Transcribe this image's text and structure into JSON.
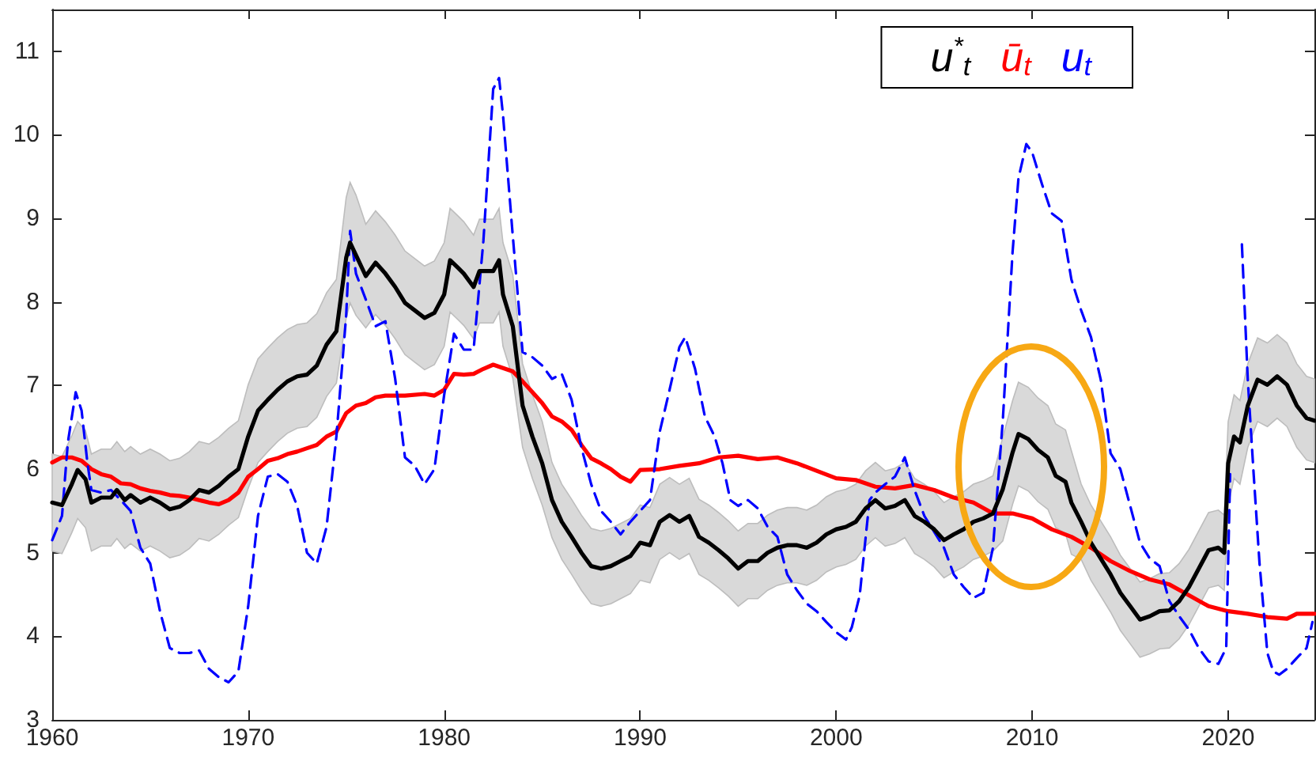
{
  "chart_data": {
    "type": "line",
    "marker": "none",
    "legend": "top right",
    "grid": false,
    "xlim": [
      1960,
      2024.4
    ],
    "xticks": [
      1960,
      1970,
      1980,
      1990,
      2000,
      2010,
      2020
    ],
    "ylim": [
      3,
      11.5
    ],
    "yticks": [
      3,
      4,
      5,
      6,
      7,
      8,
      9,
      10,
      11
    ],
    "series": [
      {
        "name": "ū$_{t}$",
        "color": "#ff0000",
        "line_style": "solid",
        "x": [
          1960,
          1960.5,
          1961,
          1961.5,
          1962,
          1962.5,
          1963,
          1963.5,
          1964,
          1964.5,
          1965,
          1965.5,
          1966,
          1966.5,
          1967,
          1967.5,
          1968,
          1968.5,
          1969,
          1969.5,
          1970,
          1970.5,
          1971,
          1971.5,
          1972,
          1972.5,
          1973,
          1973.5,
          1974,
          1974.5,
          1975,
          1975.5,
          1976,
          1976.5,
          1977,
          1978,
          1979,
          1979.5,
          1980,
          1980.5,
          1981,
          1981.5,
          1982,
          1982.5,
          1983,
          1983.5,
          1984,
          1984.5,
          1985,
          1985.5,
          1986,
          1986.5,
          1987,
          1987.5,
          1988,
          1988.5,
          1989,
          1989.5,
          1990,
          1991,
          1992,
          1993,
          1994,
          1995,
          1996,
          1997,
          1998,
          1999,
          2000,
          2001,
          2002,
          2003,
          2004,
          2005,
          2006,
          2007,
          2008,
          2009,
          2010,
          2011,
          2012,
          2013,
          2014,
          2015,
          2016,
          2017,
          2018,
          2019,
          2020,
          2021,
          2022,
          2023,
          2023.5,
          2024.4
        ],
        "values": [
          6.08,
          6.14,
          6.14,
          6.1,
          6.0,
          5.94,
          5.91,
          5.83,
          5.82,
          5.77,
          5.74,
          5.72,
          5.69,
          5.68,
          5.66,
          5.63,
          5.6,
          5.58,
          5.63,
          5.72,
          5.91,
          6.0,
          6.1,
          6.13,
          6.18,
          6.21,
          6.25,
          6.29,
          6.39,
          6.45,
          6.67,
          6.76,
          6.79,
          6.86,
          6.88,
          6.88,
          6.9,
          6.88,
          6.95,
          7.14,
          7.13,
          7.14,
          7.2,
          7.25,
          7.21,
          7.17,
          7.05,
          6.92,
          6.79,
          6.63,
          6.57,
          6.47,
          6.29,
          6.13,
          6.07,
          6.0,
          5.91,
          5.85,
          5.99,
          6.0,
          6.04,
          6.07,
          6.14,
          6.16,
          6.12,
          6.14,
          6.07,
          5.98,
          5.89,
          5.87,
          5.79,
          5.77,
          5.81,
          5.75,
          5.66,
          5.6,
          5.47,
          5.47,
          5.41,
          5.28,
          5.19,
          5.06,
          4.9,
          4.78,
          4.68,
          4.62,
          4.49,
          4.36,
          4.3,
          4.27,
          4.23,
          4.21,
          4.27,
          4.27
        ]
      },
      {
        "name": "u$_{t}$",
        "color": "#0000ff",
        "line_style": "dashed",
        "x": [
          1960,
          1960.5,
          1960.8,
          1961.2,
          1961.5,
          1961.8,
          1962,
          1962.5,
          1963,
          1963.5,
          1964,
          1964.5,
          1965,
          1965.5,
          1966,
          1966.5,
          1967,
          1967.5,
          1968,
          1968.5,
          1969,
          1969.5,
          1970,
          1970.5,
          1971,
          1971.5,
          1972,
          1972.5,
          1973,
          1973.5,
          1974,
          1974.5,
          1975,
          1975.2,
          1975.5,
          1976,
          1976.5,
          1977,
          1977.5,
          1978,
          1978.5,
          1979,
          1979.5,
          1980,
          1980.5,
          1981,
          1981.5,
          1982,
          1982.5,
          1982.8,
          1983,
          1983.5,
          1984,
          1984.5,
          1985,
          1985.5,
          1986,
          1986.5,
          1987,
          1987.5,
          1988,
          1988.5,
          1989,
          1989.5,
          1990,
          1990.5,
          1991,
          1991.5,
          1992,
          1992.3,
          1992.8,
          1993.3,
          1993.8,
          1994.2,
          1994.6,
          1995,
          1995.5,
          1996,
          1996.5,
          1997,
          1997.5,
          1998,
          1998.5,
          1999,
          1999.5,
          2000,
          2000.5,
          2000.8,
          2001.2,
          2001.7,
          2002,
          2002.5,
          2003,
          2003.5,
          2004,
          2004.5,
          2005,
          2005.5,
          2006,
          2006.5,
          2007,
          2007.5,
          2008,
          2008.5,
          2009,
          2009.3,
          2009.7,
          2010,
          2010.5,
          2011,
          2011.5,
          2012,
          2012.5,
          2013,
          2013.5,
          2014,
          2014.5,
          2015,
          2015.5,
          2016,
          2016.5,
          2017,
          2017.5,
          2018,
          2018.5,
          2019,
          2019.5,
          2019.9,
          2020.1,
          2020.3,
          2020.7,
          2021,
          2021.3,
          2021.6,
          2022,
          2022.3,
          2022.6,
          2023,
          2023.5,
          2024,
          2024.3
        ],
        "values": [
          5.15,
          5.44,
          6.32,
          6.92,
          6.7,
          6.07,
          5.75,
          5.72,
          5.75,
          5.63,
          5.5,
          5.06,
          4.87,
          4.3,
          3.86,
          3.8,
          3.8,
          3.83,
          3.61,
          3.51,
          3.45,
          3.58,
          4.36,
          5.44,
          5.91,
          5.94,
          5.85,
          5.56,
          5.0,
          4.87,
          5.31,
          6.39,
          7.84,
          8.85,
          8.34,
          8.03,
          7.71,
          7.77,
          7.08,
          6.14,
          6.04,
          5.82,
          6.0,
          6.89,
          7.62,
          7.43,
          7.43,
          8.73,
          10.55,
          10.68,
          10.24,
          8.79,
          7.4,
          7.34,
          7.24,
          7.08,
          7.14,
          6.83,
          6.26,
          5.82,
          5.5,
          5.37,
          5.22,
          5.37,
          5.5,
          5.63,
          6.45,
          6.95,
          7.46,
          7.58,
          7.2,
          6.63,
          6.39,
          6.07,
          5.63,
          5.56,
          5.63,
          5.53,
          5.31,
          5.19,
          4.74,
          4.55,
          4.39,
          4.3,
          4.17,
          4.05,
          3.96,
          4.11,
          4.49,
          5.63,
          5.72,
          5.82,
          5.91,
          6.14,
          5.75,
          5.44,
          5.25,
          5.06,
          4.74,
          4.59,
          4.46,
          4.52,
          5.06,
          6.58,
          8.6,
          9.48,
          9.89,
          9.79,
          9.41,
          9.06,
          8.97,
          8.27,
          7.9,
          7.58,
          7.07,
          6.19,
          6.0,
          5.56,
          5.12,
          4.93,
          4.84,
          4.42,
          4.24,
          4.08,
          3.86,
          3.7,
          3.67,
          3.86,
          5.94,
          null,
          8.69,
          7.07,
          5.94,
          4.87,
          3.8,
          3.58,
          3.54,
          3.61,
          3.74,
          3.86,
          4.17
        ]
      },
      {
        "name": "u$^{*}$$_{t}$",
        "color": "#000000",
        "line_style": "solid",
        "x": [
          1960,
          1960.5,
          1961,
          1961.3,
          1961.7,
          1962,
          1962.5,
          1963,
          1963.3,
          1963.7,
          1964,
          1964.5,
          1965,
          1965.5,
          1966,
          1966.5,
          1967,
          1967.5,
          1968,
          1968.5,
          1969,
          1969.5,
          1970,
          1970.5,
          1971,
          1971.5,
          1972,
          1972.5,
          1973,
          1973.5,
          1974,
          1974.5,
          1975,
          1975.2,
          1975.5,
          1976,
          1976.5,
          1977,
          1977.5,
          1978,
          1978.5,
          1979,
          1979.5,
          1980,
          1980.3,
          1980.7,
          1981,
          1981.5,
          1981.8,
          1982,
          1982.5,
          1982.8,
          1983,
          1983.5,
          1984,
          1984.5,
          1985,
          1985.5,
          1986,
          1986.5,
          1987,
          1987.5,
          1988,
          1988.5,
          1989,
          1989.5,
          1990,
          1990.5,
          1991,
          1991.5,
          1992,
          1992.5,
          1993,
          1993.5,
          1994,
          1994.5,
          1995,
          1995.5,
          1996,
          1996.5,
          1997,
          1997.5,
          1998,
          1998.5,
          1999,
          1999.5,
          2000,
          2000.5,
          2001,
          2001.5,
          2002,
          2002.5,
          2003,
          2003.5,
          2004,
          2004.5,
          2005,
          2005.5,
          2006,
          2006.5,
          2007,
          2007.5,
          2008,
          2008.5,
          2009,
          2009.3,
          2009.8,
          2010.3,
          2010.8,
          2011.2,
          2011.7,
          2012,
          2012.5,
          2013,
          2013.5,
          2014,
          2014.5,
          2015,
          2015.5,
          2016,
          2016.5,
          2017,
          2017.5,
          2018,
          2018.5,
          2019,
          2019.5,
          2019.8,
          2020,
          2020.3,
          2020.6,
          2021,
          2021.5,
          2022,
          2022.5,
          2023,
          2023.5,
          2024,
          2024.4
        ],
        "values": [
          5.6,
          5.57,
          5.82,
          5.99,
          5.88,
          5.6,
          5.66,
          5.66,
          5.75,
          5.63,
          5.69,
          5.6,
          5.66,
          5.6,
          5.52,
          5.55,
          5.63,
          5.75,
          5.72,
          5.8,
          5.91,
          6.0,
          6.39,
          6.7,
          6.83,
          6.95,
          7.05,
          7.11,
          7.13,
          7.24,
          7.49,
          7.65,
          8.53,
          8.71,
          8.56,
          8.31,
          8.47,
          8.34,
          8.18,
          7.99,
          7.9,
          7.81,
          7.87,
          8.09,
          8.5,
          8.41,
          8.34,
          8.18,
          8.37,
          8.37,
          8.37,
          8.5,
          8.09,
          7.71,
          6.76,
          6.39,
          6.07,
          5.63,
          5.37,
          5.19,
          5.0,
          4.84,
          4.81,
          4.84,
          4.9,
          4.96,
          5.12,
          5.09,
          5.37,
          5.45,
          5.37,
          5.44,
          5.19,
          5.12,
          5.03,
          4.93,
          4.81,
          4.9,
          4.9,
          5.0,
          5.06,
          5.09,
          5.09,
          5.06,
          5.12,
          5.22,
          5.28,
          5.31,
          5.37,
          5.53,
          5.63,
          5.53,
          5.56,
          5.63,
          5.44,
          5.37,
          5.28,
          5.15,
          5.22,
          5.28,
          5.37,
          5.41,
          5.47,
          5.76,
          6.2,
          6.42,
          6.36,
          6.23,
          6.14,
          5.92,
          5.85,
          5.6,
          5.37,
          5.12,
          4.93,
          4.74,
          4.52,
          4.36,
          4.2,
          4.24,
          4.3,
          4.31,
          4.42,
          4.59,
          4.81,
          5.03,
          5.06,
          5.0,
          6.07,
          6.39,
          6.32,
          6.76,
          7.07,
          7.01,
          7.11,
          7.01,
          6.76,
          6.61,
          6.58
        ],
        "lower": [
          5.02,
          4.99,
          5.24,
          5.41,
          5.3,
          5.02,
          5.08,
          5.08,
          5.17,
          5.05,
          5.11,
          5.02,
          5.08,
          5.02,
          4.94,
          4.97,
          5.05,
          5.17,
          5.14,
          5.22,
          5.33,
          5.42,
          5.77,
          6.08,
          6.21,
          6.33,
          6.43,
          6.49,
          6.51,
          6.62,
          6.87,
          7.03,
          7.81,
          7.99,
          7.84,
          7.69,
          7.85,
          7.72,
          7.56,
          7.37,
          7.28,
          7.19,
          7.25,
          7.47,
          7.88,
          7.79,
          7.72,
          7.56,
          7.75,
          7.75,
          7.75,
          7.88,
          7.47,
          7.09,
          6.26,
          5.89,
          5.57,
          5.18,
          4.92,
          4.74,
          4.55,
          4.39,
          4.36,
          4.39,
          4.45,
          4.51,
          4.67,
          4.64,
          4.92,
          5.0,
          4.92,
          4.99,
          4.74,
          4.67,
          4.58,
          4.48,
          4.36,
          4.45,
          4.45,
          4.55,
          4.61,
          4.64,
          4.64,
          4.61,
          4.67,
          4.77,
          4.83,
          4.86,
          4.92,
          5.08,
          5.18,
          5.08,
          5.11,
          5.18,
          4.99,
          4.92,
          4.83,
          4.7,
          4.77,
          4.83,
          4.92,
          4.96,
          5.02,
          5.14,
          5.58,
          5.8,
          5.74,
          5.61,
          5.52,
          5.3,
          5.23,
          4.98,
          4.92,
          4.67,
          4.48,
          4.29,
          4.07,
          3.91,
          3.75,
          3.79,
          3.85,
          3.86,
          3.97,
          4.14,
          4.36,
          4.58,
          4.61,
          4.55,
          5.57,
          5.89,
          5.82,
          6.26,
          6.57,
          6.51,
          6.61,
          6.51,
          6.26,
          6.11,
          6.08
        ],
        "upper": [
          6.18,
          6.15,
          6.4,
          6.57,
          6.46,
          6.18,
          6.24,
          6.24,
          6.33,
          6.21,
          6.27,
          6.18,
          6.24,
          6.18,
          6.1,
          6.13,
          6.21,
          6.33,
          6.3,
          6.38,
          6.49,
          6.58,
          7.01,
          7.32,
          7.45,
          7.57,
          7.67,
          7.73,
          7.75,
          7.86,
          8.11,
          8.27,
          9.25,
          9.43,
          9.28,
          8.93,
          9.09,
          8.96,
          8.8,
          8.61,
          8.52,
          8.43,
          8.49,
          8.71,
          9.12,
          9.03,
          8.96,
          8.8,
          8.99,
          8.99,
          8.99,
          9.12,
          8.71,
          8.33,
          7.26,
          6.89,
          6.57,
          6.08,
          5.82,
          5.64,
          5.45,
          5.29,
          5.26,
          5.29,
          5.35,
          5.41,
          5.57,
          5.54,
          5.82,
          5.9,
          5.82,
          5.89,
          5.64,
          5.57,
          5.48,
          5.38,
          5.26,
          5.35,
          5.35,
          5.45,
          5.51,
          5.54,
          5.54,
          5.51,
          5.57,
          5.67,
          5.73,
          5.76,
          5.82,
          5.98,
          6.08,
          5.98,
          6.01,
          6.08,
          5.89,
          5.82,
          5.73,
          5.6,
          5.67,
          5.73,
          5.82,
          5.86,
          5.92,
          6.38,
          6.82,
          7.04,
          6.98,
          6.85,
          6.76,
          6.54,
          6.47,
          6.22,
          5.82,
          5.57,
          5.38,
          5.19,
          4.97,
          4.81,
          4.65,
          4.69,
          4.75,
          4.76,
          4.87,
          5.04,
          5.26,
          5.48,
          5.51,
          5.45,
          6.57,
          6.89,
          6.82,
          7.26,
          7.57,
          7.51,
          7.61,
          7.51,
          7.26,
          7.11,
          7.08
        ]
      }
    ]
  }
}
